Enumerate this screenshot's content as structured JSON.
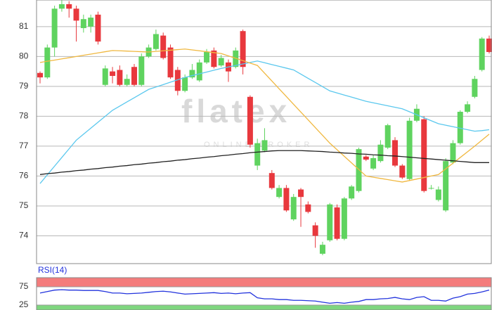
{
  "watermark": {
    "brand": "flatex",
    "tagline": "ONLINE BROKER"
  },
  "chart_data": [
    {
      "type": "candlestick",
      "open": [
        79.45,
        79.3,
        80.3,
        81.6,
        81.75,
        81.6,
        80.95,
        81.0,
        81.4,
        79.05,
        79.5,
        79.55,
        79.05,
        79.65,
        79.05,
        80.0,
        80.25,
        80.7,
        80.3,
        79.55,
        78.85,
        79.3,
        79.2,
        79.8,
        80.2,
        79.7,
        79.8,
        79.65,
        80.85,
        78.65,
        76.35,
        76.85,
        76.1,
        75.3,
        75.6,
        74.55,
        75.55,
        75.05,
        74.35,
        73.4,
        73.85,
        74.95,
        73.9,
        75.25,
        75.5,
        76.65,
        76.25,
        76.5,
        76.95,
        77.2,
        76.35,
        75.9,
        77.85,
        77.9,
        75.6,
        75.2,
        74.85,
        76.45,
        77.1,
        78.15,
        78.65,
        79.55,
        80.6
      ],
      "high": [
        79.5,
        80.4,
        81.7,
        81.9,
        81.85,
        81.7,
        81.4,
        81.4,
        81.5,
        79.7,
        79.65,
        79.7,
        79.4,
        79.75,
        80.1,
        80.4,
        80.9,
        80.8,
        80.4,
        79.65,
        79.4,
        79.75,
        79.9,
        80.25,
        80.3,
        80.05,
        79.9,
        80.3,
        80.9,
        78.7,
        77.25,
        77.6,
        76.2,
        75.7,
        75.7,
        75.4,
        75.6,
        75.15,
        74.45,
        73.8,
        75.1,
        75.05,
        75.3,
        75.7,
        76.95,
        76.7,
        76.7,
        77.2,
        77.75,
        77.3,
        76.4,
        77.95,
        78.4,
        78.0,
        75.7,
        75.65,
        76.6,
        77.2,
        78.2,
        78.5,
        79.35,
        80.65,
        80.7
      ],
      "low": [
        79.1,
        79.25,
        80.0,
        81.5,
        81.3,
        80.5,
        80.8,
        80.8,
        80.4,
        79.0,
        79.1,
        79.0,
        79.0,
        79.0,
        79.0,
        79.95,
        80.2,
        79.9,
        79.25,
        78.7,
        78.8,
        79.25,
        79.15,
        79.75,
        79.6,
        79.65,
        79.15,
        79.6,
        79.4,
        76.95,
        76.2,
        76.8,
        75.55,
        75.25,
        74.8,
        74.5,
        74.3,
        74.75,
        73.6,
        73.35,
        73.8,
        73.85,
        73.85,
        75.2,
        75.45,
        76.5,
        76.2,
        76.45,
        76.9,
        76.3,
        75.9,
        75.85,
        77.8,
        75.45,
        75.55,
        75.15,
        74.8,
        76.4,
        77.05,
        78.1,
        78.6,
        79.5,
        80.1
      ],
      "close": [
        79.3,
        80.3,
        81.6,
        81.75,
        81.6,
        81.2,
        81.25,
        81.3,
        80.5,
        79.6,
        79.35,
        79.05,
        79.25,
        79.05,
        80.0,
        80.3,
        80.75,
        79.95,
        79.3,
        78.85,
        79.3,
        79.55,
        79.8,
        80.15,
        79.65,
        79.95,
        79.5,
        80.2,
        79.65,
        77.05,
        77.1,
        77.2,
        75.6,
        75.6,
        74.85,
        75.3,
        75.3,
        74.8,
        74.0,
        73.7,
        75.05,
        73.9,
        75.25,
        75.65,
        76.9,
        76.55,
        76.6,
        77.05,
        77.7,
        76.35,
        75.95,
        77.85,
        78.25,
        75.5,
        75.6,
        75.55,
        76.5,
        77.1,
        78.15,
        78.4,
        79.25,
        80.6,
        80.15
      ],
      "up_color": "#5fd35f",
      "down_color": "#e8383d",
      "series": [
        {
          "color": "#5bc8ee",
          "values": [
            75.75,
            76.04,
            76.33,
            76.62,
            76.91,
            77.2,
            77.4,
            77.6,
            77.8,
            78.0,
            78.2,
            78.34,
            78.48,
            78.62,
            78.76,
            78.9,
            78.98,
            79.06,
            79.14,
            79.22,
            79.3,
            79.36,
            79.42,
            79.48,
            79.54,
            79.6,
            79.65,
            79.7,
            79.75,
            79.8,
            79.85,
            79.79,
            79.73,
            79.67,
            79.61,
            79.55,
            79.41,
            79.27,
            79.13,
            78.99,
            78.85,
            78.78,
            78.71,
            78.64,
            78.57,
            78.5,
            78.45,
            78.4,
            78.35,
            78.3,
            78.25,
            78.15,
            78.05,
            77.95,
            77.85,
            77.75,
            77.7,
            77.65,
            77.6,
            77.55,
            77.5,
            77.52,
            77.55
          ]
        },
        {
          "color": "#f0b840",
          "values": [
            79.8,
            79.84,
            79.88,
            79.92,
            79.96,
            80.0,
            80.04,
            80.08,
            80.12,
            80.16,
            80.2,
            80.19,
            80.18,
            80.17,
            80.16,
            80.15,
            80.17,
            80.19,
            80.21,
            80.23,
            80.25,
            80.22,
            80.19,
            80.16,
            80.13,
            80.1,
            80.02,
            79.94,
            79.86,
            79.78,
            79.7,
            79.44,
            79.18,
            78.92,
            78.66,
            78.4,
            78.14,
            77.88,
            77.62,
            77.36,
            77.1,
            76.88,
            76.66,
            76.44,
            76.22,
            76.0,
            75.96,
            75.92,
            75.88,
            75.84,
            75.8,
            75.85,
            75.9,
            75.95,
            76.0,
            76.05,
            76.24,
            76.43,
            76.62,
            76.81,
            77.0,
            77.2,
            77.4
          ]
        },
        {
          "color": "#222222",
          "values": [
            76.05,
            76.08,
            76.1,
            76.13,
            76.15,
            76.18,
            76.2,
            76.23,
            76.25,
            76.28,
            76.3,
            76.33,
            76.35,
            76.38,
            76.4,
            76.43,
            76.45,
            76.48,
            76.5,
            76.53,
            76.55,
            76.58,
            76.6,
            76.63,
            76.65,
            76.68,
            76.7,
            76.73,
            76.75,
            76.78,
            76.8,
            76.82,
            76.84,
            76.85,
            76.85,
            76.85,
            76.85,
            76.84,
            76.83,
            76.82,
            76.8,
            76.79,
            76.77,
            76.76,
            76.74,
            76.73,
            76.71,
            76.7,
            76.68,
            76.67,
            76.65,
            76.63,
            76.61,
            76.59,
            76.57,
            76.55,
            76.53,
            76.51,
            76.49,
            76.47,
            76.45,
            76.45,
            76.45
          ]
        }
      ],
      "ylim": [
        73.07,
        81.89
      ],
      "yticks": [
        74,
        75,
        76,
        77,
        78,
        79,
        80,
        81
      ],
      "grid": true
    },
    {
      "type": "line",
      "title": "RSI(14)",
      "color": "#2233dd",
      "values": [
        58,
        62,
        66,
        67,
        66,
        66,
        65,
        65,
        65,
        62,
        58,
        58,
        56,
        57,
        58,
        60,
        62,
        63,
        61,
        58,
        55,
        56,
        57,
        58,
        59,
        57,
        58,
        56,
        58,
        59,
        45,
        42,
        42,
        40,
        40,
        38,
        38,
        37,
        36,
        33,
        30,
        32,
        30,
        33,
        35,
        40,
        40,
        42,
        43,
        46,
        42,
        40,
        46,
        48,
        38,
        38,
        36,
        44,
        48,
        55,
        57,
        61,
        66
      ],
      "bands": [
        {
          "from": 75,
          "to": 100,
          "color": "#f47c7c"
        },
        {
          "from": 0,
          "to": 25,
          "color": "#7ed67e"
        }
      ],
      "ylim": [
        0,
        100
      ],
      "yticks": [
        25,
        75
      ]
    }
  ]
}
